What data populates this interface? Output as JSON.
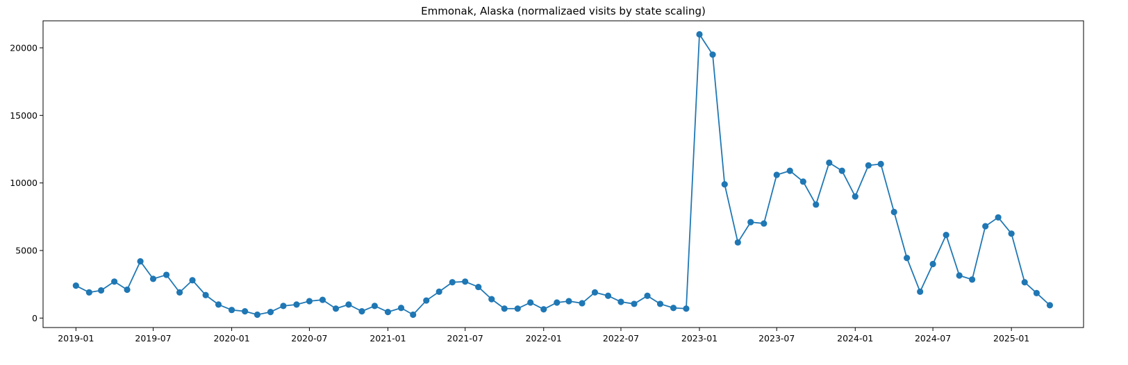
{
  "chart_data": {
    "type": "line",
    "title": "Emmonak, Alaska (normalizaed visits by state scaling)",
    "xlabel": "",
    "ylabel": "",
    "grid": false,
    "marker": "circle",
    "color": "#1f77b4",
    "x_tick_labels": [
      "2019-01",
      "2019-07",
      "2020-01",
      "2020-07",
      "2021-01",
      "2021-07",
      "2022-01",
      "2022-07",
      "2023-01",
      "2023-07",
      "2024-01",
      "2024-07",
      "2025-01"
    ],
    "y_tick_labels": [
      "0",
      "5000",
      "10000",
      "15000",
      "20000"
    ],
    "ylim": [
      -700,
      22000
    ],
    "xlim": [
      "2018-10-16",
      "2025-06-19"
    ],
    "series": [
      {
        "x": [
          "2019-01",
          "2019-02",
          "2019-03",
          "2019-04",
          "2019-05",
          "2019-06",
          "2019-07",
          "2019-08",
          "2019-09",
          "2019-10",
          "2019-11",
          "2019-12",
          "2020-01",
          "2020-02",
          "2020-03",
          "2020-04",
          "2020-05",
          "2020-06",
          "2020-07",
          "2020-08",
          "2020-09",
          "2020-10",
          "2020-11",
          "2020-12",
          "2021-01",
          "2021-02",
          "2021-03",
          "2021-04",
          "2021-05",
          "2021-06",
          "2021-07",
          "2021-08",
          "2021-09",
          "2021-10",
          "2021-11",
          "2021-12",
          "2022-01",
          "2022-02",
          "2022-03",
          "2022-04",
          "2022-05",
          "2022-06",
          "2022-07",
          "2022-08",
          "2022-09",
          "2022-10",
          "2022-11",
          "2022-12",
          "2023-01",
          "2023-02",
          "2023-03",
          "2023-04",
          "2023-05",
          "2023-06",
          "2023-07",
          "2023-08",
          "2023-09",
          "2023-10",
          "2023-11",
          "2023-12",
          "2024-01",
          "2024-02",
          "2024-03",
          "2024-04",
          "2024-05",
          "2024-06",
          "2024-07",
          "2024-08",
          "2024-09",
          "2024-10",
          "2024-11",
          "2024-12",
          "2025-01",
          "2025-02",
          "2025-03",
          "2025-04"
        ],
        "values": [
          2400,
          1900,
          2050,
          2700,
          2100,
          4200,
          2900,
          3200,
          1900,
          2800,
          1700,
          1000,
          600,
          500,
          250,
          450,
          900,
          1000,
          1250,
          1350,
          700,
          1000,
          500,
          900,
          450,
          750,
          250,
          1300,
          1950,
          2650,
          2700,
          2300,
          1400,
          700,
          700,
          1150,
          650,
          1150,
          1250,
          1100,
          1900,
          1650,
          1200,
          1050,
          1650,
          1050,
          750,
          700,
          21000,
          19500,
          9900,
          5600,
          7100,
          7000,
          10600,
          10900,
          10100,
          8400,
          11500,
          10900,
          9000,
          11300,
          11400,
          7850,
          4450,
          1950,
          4000,
          6150,
          3150,
          2850,
          6800,
          7450,
          6250,
          2650,
          1850,
          950
        ]
      }
    ]
  }
}
